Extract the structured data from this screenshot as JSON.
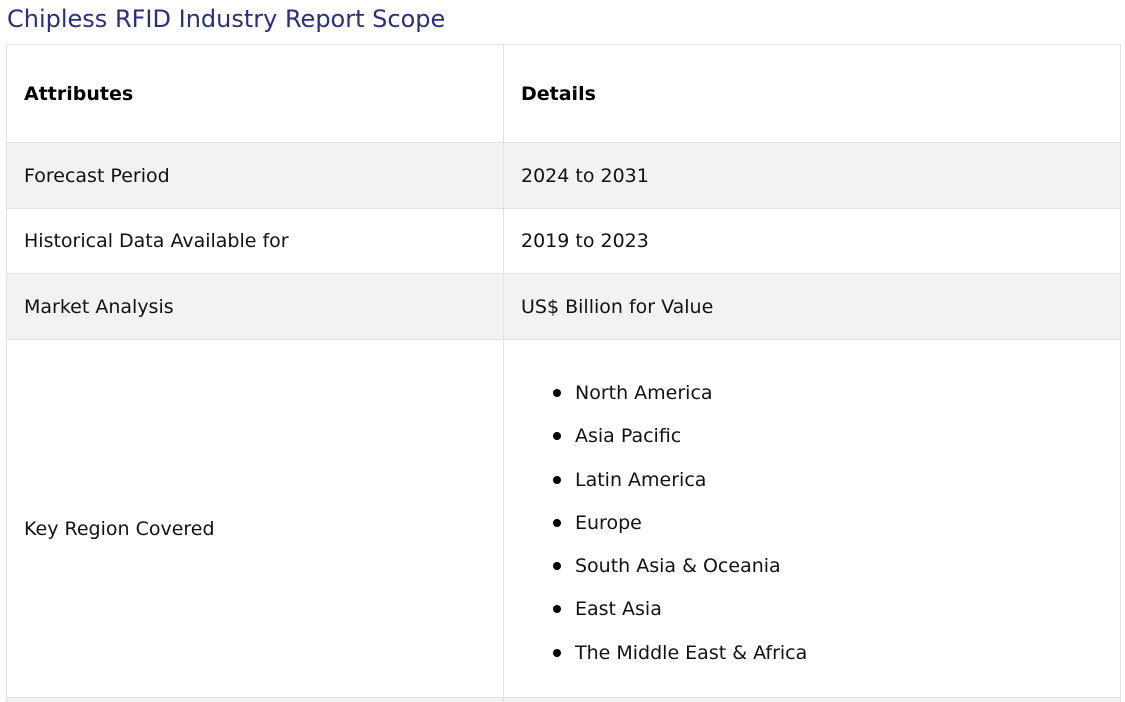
{
  "title": "Chipless RFID Industry Report Scope",
  "table": {
    "headers": {
      "attributes": "Attributes",
      "details": "Details"
    },
    "rows": [
      {
        "attribute": "Forecast Period",
        "detail": "2024 to 2031"
      },
      {
        "attribute": "Historical Data Available for",
        "detail": "2019 to 2023"
      },
      {
        "attribute": "Market Analysis",
        "detail": "US$ Billion for Value"
      },
      {
        "attribute": "Key Region Covered",
        "regions": [
          "North America",
          "Asia Pacific",
          "Latin America",
          "Europe",
          "South Asia & Oceania",
          "East Asia",
          "The Middle East & Africa"
        ]
      }
    ]
  },
  "colors": {
    "title": "#2b2f80",
    "shaded_row": "#f2f2f2",
    "border": "#e2e2e2"
  }
}
